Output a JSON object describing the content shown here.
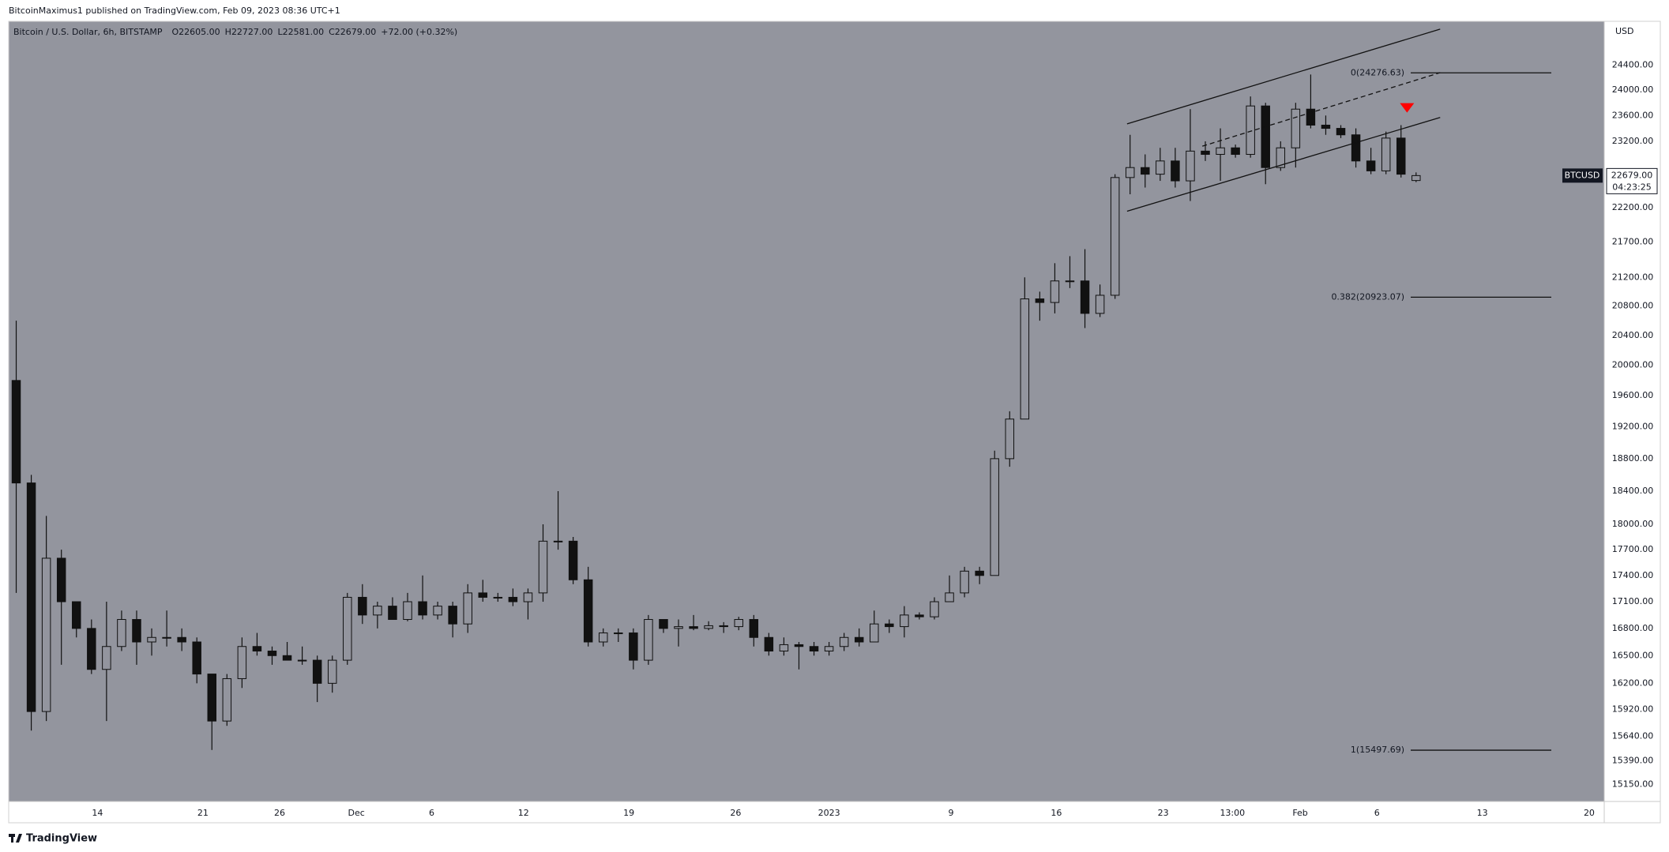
{
  "published": "BitcoinMaximus1 published on TradingView.com, Feb 09, 2023 08:36 UTC+1",
  "footer": "TradingView",
  "chart_data": {
    "type": "candlestick",
    "title": "Bitcoin / U.S. Dollar, 6h, BITSTAMP",
    "ohlc_legend": [
      {
        "key": "O",
        "value": "22605.00"
      },
      {
        "key": "H",
        "value": "22727.00"
      },
      {
        "key": "L",
        "value": "22581.00"
      },
      {
        "key": "C",
        "value": "22679.00"
      }
    ],
    "change": "+72.00 (+0.32%)",
    "y_axis_label": "USD",
    "log_scale": true,
    "grid": false,
    "background": "#93959e",
    "up_color": "#93959e",
    "down_color": "#111111",
    "wick_color": "#111111",
    "open": [
      19800,
      18500,
      15900,
      17600,
      17100,
      16800,
      16350,
      16600,
      16900,
      16650,
      16700,
      16700,
      16650,
      16300,
      15800,
      16250,
      16600,
      16550,
      16500,
      16450,
      16450,
      16200,
      16450,
      17150,
      16950,
      17050,
      16900,
      17100,
      16950,
      17050,
      16850,
      17200,
      17150,
      17150,
      17100,
      17200,
      17800,
      17800,
      17350,
      16650,
      16750,
      16750,
      16450,
      16900,
      16800,
      16820,
      16800,
      16830,
      16820,
      16900,
      16700,
      16550,
      16620,
      16600,
      16550,
      16600,
      16700,
      16650,
      16850,
      16820,
      16950,
      16930,
      17100,
      17200,
      17450,
      17400,
      18800,
      19300,
      20900,
      20850,
      21150,
      21150,
      20700,
      20950,
      22650,
      22800,
      22700,
      22900,
      22600,
      23050,
      23000,
      23100,
      23000,
      23750,
      22800,
      23100,
      23700,
      23450,
      23400,
      23300,
      22900,
      22750,
      23250,
      22605
    ],
    "high": [
      20600,
      18600,
      18100,
      17700,
      17100,
      16900,
      17100,
      17000,
      17000,
      16800,
      17000,
      16800,
      16700,
      16300,
      16300,
      16700,
      16750,
      16600,
      16650,
      16600,
      16500,
      16500,
      17200,
      17300,
      17100,
      17150,
      17200,
      17400,
      17100,
      17100,
      17300,
      17350,
      17200,
      17250,
      17250,
      18000,
      18400,
      17850,
      17500,
      16800,
      16800,
      16800,
      16950,
      16900,
      16900,
      16950,
      16880,
      16870,
      16930,
      16950,
      16750,
      16700,
      16650,
      16650,
      16650,
      16750,
      16800,
      17000,
      16900,
      17050,
      16980,
      17150,
      17400,
      17500,
      17500,
      18900,
      19400,
      21200,
      21000,
      21400,
      21500,
      21600,
      21100,
      22700,
      23300,
      23000,
      23100,
      23100,
      23700,
      23200,
      23400,
      23150,
      23900,
      23800,
      23200,
      23800,
      24250,
      23600,
      23450,
      23400,
      23100,
      23350,
      23450,
      22727
    ],
    "low": [
      17200,
      15700,
      15800,
      16400,
      16700,
      16300,
      15800,
      16550,
      16400,
      16500,
      16600,
      16550,
      16200,
      15500,
      15750,
      16150,
      16500,
      16400,
      16450,
      16400,
      16000,
      16100,
      16400,
      16850,
      16800,
      16900,
      16880,
      16900,
      16900,
      16700,
      16750,
      17100,
      17100,
      17050,
      16900,
      17100,
      17700,
      17300,
      16600,
      16600,
      16650,
      16350,
      16400,
      16750,
      16600,
      16780,
      16780,
      16750,
      16780,
      16600,
      16500,
      16500,
      16350,
      16500,
      16500,
      16550,
      16600,
      16650,
      16750,
      16700,
      16900,
      16900,
      17100,
      17150,
      17300,
      17400,
      18700,
      19300,
      20600,
      20700,
      21050,
      20500,
      20650,
      20900,
      22400,
      22500,
      22600,
      22500,
      22300,
      22900,
      22600,
      22950,
      22950,
      22550,
      22750,
      22800,
      23400,
      23300,
      23250,
      22800,
      22700,
      22700,
      22650,
      22581
    ],
    "close": [
      18500,
      15900,
      17600,
      17100,
      16800,
      16350,
      16600,
      16900,
      16650,
      16700,
      16700,
      16650,
      16300,
      15800,
      16250,
      16600,
      16550,
      16500,
      16450,
      16450,
      16200,
      16450,
      17150,
      16950,
      17050,
      16900,
      17100,
      16950,
      17050,
      16850,
      17200,
      17150,
      17150,
      17100,
      17200,
      17800,
      17800,
      17350,
      16650,
      16750,
      16750,
      16450,
      16900,
      16800,
      16820,
      16800,
      16830,
      16820,
      16900,
      16700,
      16550,
      16620,
      16600,
      16550,
      16600,
      16700,
      16650,
      16850,
      16820,
      16950,
      16930,
      17100,
      17200,
      17450,
      17400,
      18800,
      19300,
      20900,
      20850,
      21150,
      21150,
      20700,
      20950,
      22650,
      22800,
      22700,
      22900,
      22600,
      23050,
      23000,
      23100,
      23000,
      23750,
      22800,
      23100,
      23700,
      23450,
      23400,
      23300,
      22900,
      22750,
      23250,
      22700,
      22679
    ],
    "xlim": [
      0,
      106
    ],
    "xticks": [
      {
        "value": 5.9,
        "label": "14"
      },
      {
        "value": 12.9,
        "label": "21"
      },
      {
        "value": 18.0,
        "label": "26"
      },
      {
        "value": 23.1,
        "label": "Dec"
      },
      {
        "value": 28.1,
        "label": "6"
      },
      {
        "value": 34.2,
        "label": "12"
      },
      {
        "value": 41.2,
        "label": "19"
      },
      {
        "value": 48.3,
        "label": "26"
      },
      {
        "value": 54.5,
        "label": "2023"
      },
      {
        "value": 62.6,
        "label": "9"
      },
      {
        "value": 69.6,
        "label": "16"
      },
      {
        "value": 76.7,
        "label": "23"
      },
      {
        "value": 81.3,
        "label": "13:00"
      },
      {
        "value": 85.8,
        "label": "Feb"
      },
      {
        "value": 90.9,
        "label": "6"
      },
      {
        "value": 97.9,
        "label": "13"
      },
      {
        "value": 105.0,
        "label": "20"
      }
    ],
    "ylim": [
      14980,
      25120
    ],
    "yticks": [
      {
        "value": 24400,
        "label": "24400.00"
      },
      {
        "value": 24000,
        "label": "24000.00"
      },
      {
        "value": 23600,
        "label": "23600.00"
      },
      {
        "value": 23200,
        "label": "23200.00"
      },
      {
        "value": 22700,
        "label": "22700.00"
      },
      {
        "value": 22200,
        "label": "22200.00"
      },
      {
        "value": 21700,
        "label": "21700.00"
      },
      {
        "value": 21200,
        "label": "21200.00"
      },
      {
        "value": 20800,
        "label": "20800.00"
      },
      {
        "value": 20400,
        "label": "20400.00"
      },
      {
        "value": 20000,
        "label": "20000.00"
      },
      {
        "value": 19600,
        "label": "19600.00"
      },
      {
        "value": 19200,
        "label": "19200.00"
      },
      {
        "value": 18800,
        "label": "18800.00"
      },
      {
        "value": 18400,
        "label": "18400.00"
      },
      {
        "value": 18000,
        "label": "18000.00"
      },
      {
        "value": 17700,
        "label": "17700.00"
      },
      {
        "value": 17400,
        "label": "17400.00"
      },
      {
        "value": 17100,
        "label": "17100.00"
      },
      {
        "value": 16800,
        "label": "16800.00"
      },
      {
        "value": 16500,
        "label": "16500.00"
      },
      {
        "value": 16200,
        "label": "16200.00"
      },
      {
        "value": 15920,
        "label": "15920.00"
      },
      {
        "value": 15640,
        "label": "15640.00"
      },
      {
        "value": 15390,
        "label": "15390.00"
      },
      {
        "value": 15150,
        "label": "15150.00"
      }
    ],
    "fib_levels": [
      {
        "value": 24276.63,
        "label": "0(24276.63)"
      },
      {
        "value": 20923.07,
        "label": "0.382(20923.07)"
      },
      {
        "value": 15497.69,
        "label": "1(15497.69)"
      }
    ],
    "trend_lines": [
      {
        "style": "solid",
        "x": [
          74.3,
          95.1
        ],
        "y": [
          23470,
          24990
        ]
      },
      {
        "style": "dashed",
        "x": [
          79.3,
          95.1
        ],
        "y": [
          23125,
          24280
        ]
      },
      {
        "style": "solid",
        "x": [
          74.3,
          95.1
        ],
        "y": [
          22150,
          23570
        ]
      }
    ],
    "markers": [
      {
        "x": 92.9,
        "y": 23720,
        "color": "#ff0000"
      }
    ],
    "price_tag": {
      "symbol": "BTCUSD",
      "value": 22679,
      "label": "22679.00",
      "countdown": "04:23:25"
    }
  }
}
